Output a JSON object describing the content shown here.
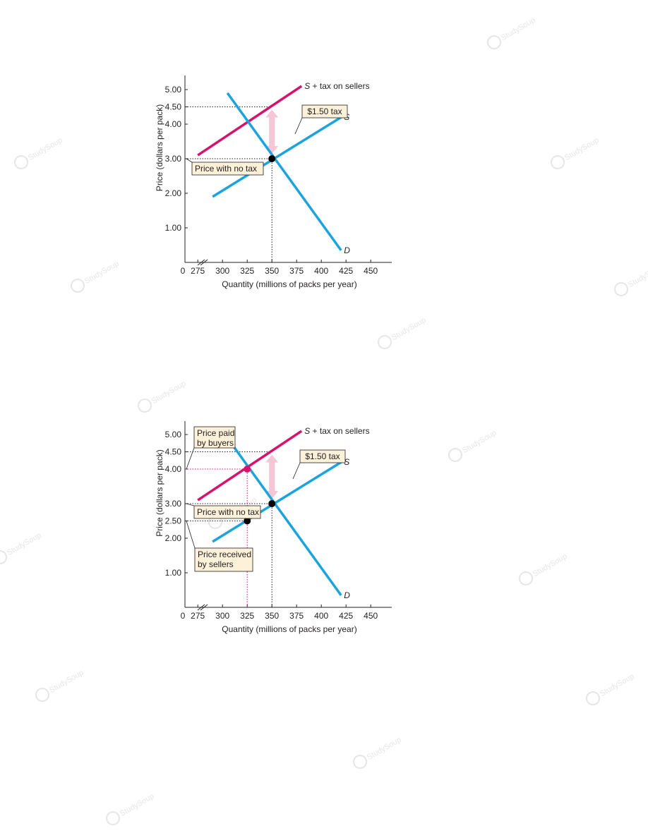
{
  "chart_data": [
    {
      "type": "line",
      "ylabel": "Price (dollars per pack)",
      "xlabel": "Quantity (millions of packs per year)",
      "xlim": [
        262,
        450
      ],
      "ylim": [
        0,
        5.5
      ],
      "x_ticks": [
        "275",
        "300",
        "325",
        "350",
        "375",
        "400",
        "425",
        "450"
      ],
      "y_ticks": [
        "1.00",
        "2.00",
        "3.00",
        "4.00",
        "4.50",
        "5.00"
      ],
      "origin_label": "0",
      "axis_break": true,
      "series": [
        {
          "name": "S + tax on sellers",
          "label_italic": "S",
          "label_rest": " + tax on sellers",
          "color": "#d4136f",
          "points": [
            [
              275,
              3.1
            ],
            [
              380,
              5.1
            ]
          ]
        },
        {
          "name": "S",
          "color": "#1ba3dd",
          "points": [
            [
              290,
              1.9
            ],
            [
              420,
              4.2
            ]
          ]
        },
        {
          "name": "D",
          "color": "#1ba3dd",
          "points": [
            [
              305,
              4.9
            ],
            [
              420,
              0.35
            ]
          ]
        }
      ],
      "equilibrium": {
        "x": 350,
        "y": 3.0
      },
      "tax_arrow": {
        "x": 350,
        "from": 3.0,
        "to": 4.5,
        "label": "$1.50 tax"
      },
      "reference_lines": [
        {
          "axis": "y",
          "value": 4.5,
          "to_x": 350
        },
        {
          "axis": "y",
          "value": 3.0,
          "to_x": 350
        },
        {
          "axis": "x",
          "value": 350,
          "to_y": 3.0
        }
      ],
      "callouts": [
        {
          "lines": [
            "Price with no tax"
          ],
          "target": [
            262,
            3.0
          ]
        }
      ]
    },
    {
      "type": "line",
      "ylabel": "Price (dollars per pack)",
      "xlabel": "Quantity (millions of packs per year)",
      "xlim": [
        262,
        450
      ],
      "ylim": [
        0,
        5.5
      ],
      "x_ticks": [
        "275",
        "300",
        "325",
        "350",
        "375",
        "400",
        "425",
        "450"
      ],
      "y_ticks": [
        "1.00",
        "2.00",
        "2.50",
        "3.00",
        "4.00",
        "4.50",
        "5.00"
      ],
      "highlight_ticks": {
        "x": "325",
        "y": "4.00",
        "color": "#d4136f"
      },
      "origin_label": "0",
      "axis_break": true,
      "series": [
        {
          "name": "S + tax on sellers",
          "label_italic": "S",
          "label_rest": " + tax on sellers",
          "color": "#d4136f",
          "points": [
            [
              275,
              3.1
            ],
            [
              380,
              5.1
            ]
          ]
        },
        {
          "name": "S",
          "color": "#1ba3dd",
          "points": [
            [
              290,
              1.9
            ],
            [
              420,
              4.2
            ]
          ]
        },
        {
          "name": "D",
          "color": "#1ba3dd",
          "points": [
            [
              305,
              4.9
            ],
            [
              420,
              0.35
            ]
          ]
        }
      ],
      "equilibrium": {
        "x": 350,
        "y": 3.0
      },
      "points": [
        {
          "x": 325,
          "y": 4.0,
          "color": "#d4136f"
        },
        {
          "x": 325,
          "y": 2.5,
          "color": "#000000"
        }
      ],
      "tax_arrow": {
        "x": 350,
        "from": 3.0,
        "to": 4.5,
        "label": "$1.50 tax"
      },
      "reference_lines": [
        {
          "axis": "y",
          "value": 4.5,
          "to_x": 350,
          "color": "#231f20"
        },
        {
          "axis": "y",
          "value": 4.0,
          "to_x": 325,
          "color": "#d4136f"
        },
        {
          "axis": "y",
          "value": 3.0,
          "to_x": 350,
          "color": "#231f20"
        },
        {
          "axis": "y",
          "value": 2.5,
          "to_x": 325,
          "color": "#231f20"
        },
        {
          "axis": "x",
          "value": 325,
          "to_y": 4.0,
          "color": "#d4136f"
        },
        {
          "axis": "x",
          "value": 350,
          "to_y": 3.0,
          "color": "#231f20"
        }
      ],
      "callouts": [
        {
          "lines": [
            "Price paid",
            "by buyers"
          ],
          "target": [
            262,
            4.0
          ]
        },
        {
          "lines": [
            "Price with no tax"
          ],
          "target": [
            262,
            3.0
          ]
        },
        {
          "lines": [
            "Price received",
            "by sellers"
          ],
          "target": [
            262,
            2.5
          ]
        }
      ]
    }
  ],
  "watermark": {
    "text": "StudySoup"
  }
}
